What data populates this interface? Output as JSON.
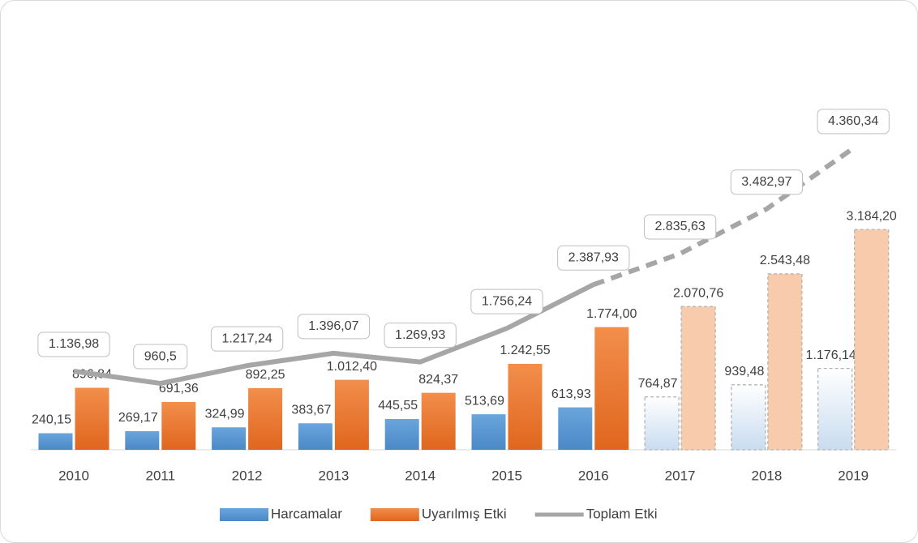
{
  "chart_data": {
    "type": "bar-line",
    "categories": [
      "2010",
      "2011",
      "2012",
      "2013",
      "2014",
      "2015",
      "2016",
      "2017",
      "2018",
      "2019"
    ],
    "forecast_start": "2017",
    "ylim": [
      0,
      6000
    ],
    "series": [
      {
        "name": "Harcamalar",
        "type": "bar",
        "color": "#5b9bd5",
        "values": [
          240.15,
          269.17,
          324.99,
          383.67,
          445.55,
          513.69,
          613.93,
          764.87,
          939.48,
          1176.14
        ],
        "value_labels": [
          "240,15",
          "269,17",
          "324,99",
          "383,67",
          "445,55",
          "513,69",
          "613,93",
          "764,87",
          "939,48",
          "1.176,14"
        ]
      },
      {
        "name": "Uyarılmış Etki",
        "type": "bar",
        "color": "#ed7d31",
        "values": [
          896.84,
          691.36,
          892.25,
          1012.4,
          824.37,
          1242.55,
          1774.0,
          2070.76,
          2543.48,
          3184.2
        ],
        "value_labels": [
          "896,84",
          "691,36",
          "892,25",
          "1.012,40",
          "824,37",
          "1.242,55",
          "1.774,00",
          "2.070,76",
          "2.543,48",
          "3.184,20"
        ]
      },
      {
        "name": "Toplam Etki",
        "type": "line",
        "color": "#a6a6a6",
        "values": [
          1136.98,
          960.5,
          1217.24,
          1396.07,
          1269.93,
          1756.24,
          2387.93,
          2835.63,
          3482.97,
          4360.34
        ],
        "value_labels": [
          "1.136,98",
          "960,5",
          "1.217,24",
          "1.396,07",
          "1.269,93",
          "1.756,24",
          "2.387,93",
          "2.835,63",
          "3.482,97",
          "4.360,34"
        ]
      }
    ],
    "legend": "bottom"
  }
}
